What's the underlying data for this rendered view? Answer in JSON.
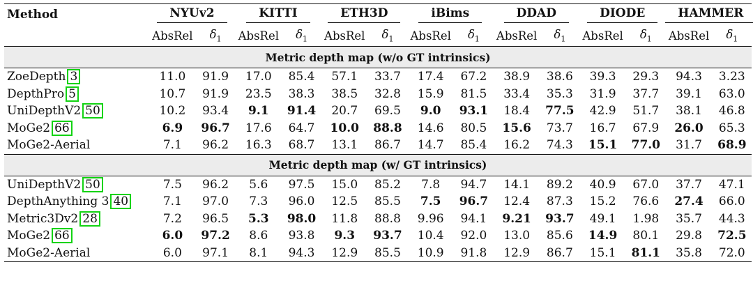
{
  "table": {
    "method_header": "Method",
    "datasets": [
      "NYUv2",
      "KITTI",
      "ETH3D",
      "iBims",
      "DDAD",
      "DIODE",
      "HAMMER"
    ],
    "metric_abs": "AbsRel",
    "metric_d1_symbol": "δ",
    "metric_d1_sub": "1",
    "sections": [
      {
        "title": "Metric depth map (w/o GT intrinsics)",
        "rows": [
          {
            "name": "ZoeDepth",
            "cite": "3",
            "values": [
              "11.0",
              "91.9",
              "17.0",
              "85.4",
              "57.1",
              "33.7",
              "17.4",
              "67.2",
              "38.9",
              "38.6",
              "39.3",
              "29.3",
              "94.3",
              "3.23"
            ],
            "bold": []
          },
          {
            "name": "DepthPro",
            "cite": "5",
            "values": [
              "10.7",
              "91.9",
              "23.5",
              "38.3",
              "38.5",
              "32.8",
              "15.9",
              "81.5",
              "33.4",
              "35.3",
              "31.9",
              "37.7",
              "39.1",
              "63.0"
            ],
            "bold": []
          },
          {
            "name": "UniDepthV2",
            "cite": "50",
            "values": [
              "10.2",
              "93.4",
              "9.1",
              "91.4",
              "20.7",
              "69.5",
              "9.0",
              "93.1",
              "18.4",
              "77.5",
              "42.9",
              "51.7",
              "38.1",
              "46.8"
            ],
            "bold": [
              2,
              3,
              6,
              7,
              9
            ]
          },
          {
            "name": "MoGe2",
            "cite": "66",
            "values": [
              "6.9",
              "96.7",
              "17.6",
              "64.7",
              "10.0",
              "88.8",
              "14.6",
              "80.5",
              "15.6",
              "73.7",
              "16.7",
              "67.9",
              "26.0",
              "65.3"
            ],
            "bold": [
              0,
              1,
              4,
              5,
              8,
              12
            ]
          },
          {
            "name": "MoGe2-Aerial",
            "cite": "",
            "values": [
              "7.1",
              "96.2",
              "16.3",
              "68.7",
              "13.1",
              "86.7",
              "14.7",
              "85.4",
              "16.2",
              "74.3",
              "15.1",
              "77.0",
              "31.7",
              "68.9"
            ],
            "bold": [
              10,
              11,
              13
            ]
          }
        ]
      },
      {
        "title": "Metric depth map (w/ GT intrinsics)",
        "rows": [
          {
            "name": "UniDepthV2",
            "cite": "50",
            "values": [
              "7.5",
              "96.2",
              "5.6",
              "97.5",
              "15.0",
              "85.2",
              "7.8",
              "94.7",
              "14.1",
              "89.2",
              "40.9",
              "67.0",
              "37.7",
              "47.1"
            ],
            "bold": []
          },
          {
            "name": "DepthAnything 3",
            "cite": "40",
            "values": [
              "7.1",
              "97.0",
              "7.3",
              "96.0",
              "12.5",
              "85.5",
              "7.5",
              "96.7",
              "12.4",
              "87.3",
              "15.2",
              "76.6",
              "27.4",
              "66.0"
            ],
            "bold": [
              6,
              7,
              12
            ]
          },
          {
            "name": "Metric3Dv2",
            "cite": "28",
            "values": [
              "7.2",
              "96.5",
              "5.3",
              "98.0",
              "11.8",
              "88.8",
              "9.96",
              "94.1",
              "9.21",
              "93.7",
              "49.1",
              "1.98",
              "35.7",
              "44.3"
            ],
            "bold": [
              2,
              3,
              8,
              9
            ]
          },
          {
            "name": "MoGe2",
            "cite": "66",
            "values": [
              "6.0",
              "97.2",
              "8.6",
              "93.8",
              "9.3",
              "93.7",
              "10.4",
              "92.0",
              "13.0",
              "85.6",
              "14.9",
              "80.1",
              "29.8",
              "72.5"
            ],
            "bold": [
              0,
              1,
              4,
              5,
              10,
              13
            ]
          },
          {
            "name": "MoGe2-Aerial",
            "cite": "",
            "values": [
              "6.0",
              "97.1",
              "8.1",
              "94.3",
              "12.9",
              "85.5",
              "10.9",
              "91.8",
              "12.9",
              "86.7",
              "15.1",
              "81.1",
              "35.8",
              "72.0"
            ],
            "bold": [
              11
            ]
          }
        ]
      }
    ]
  }
}
